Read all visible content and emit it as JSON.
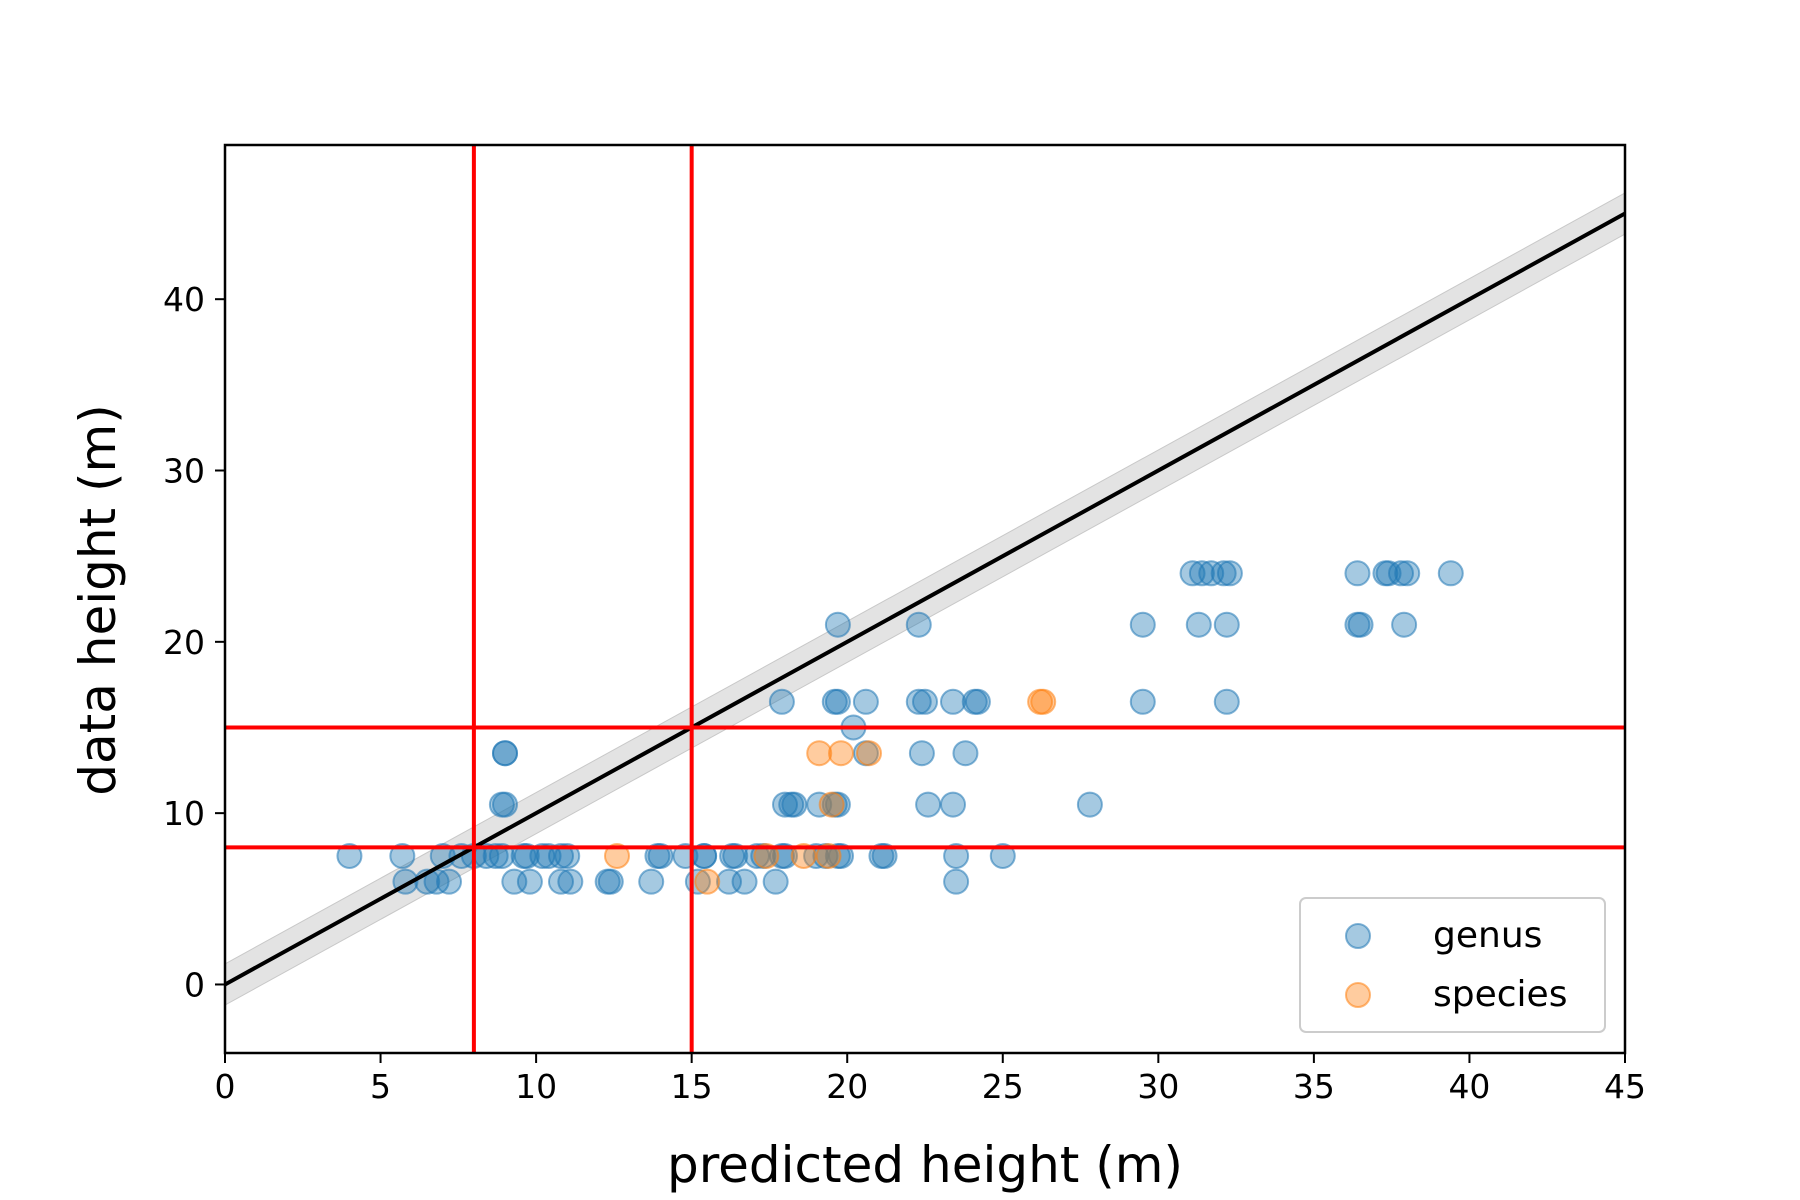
{
  "chart_data": {
    "type": "scatter",
    "title": "",
    "xlabel": "predicted height (m)",
    "ylabel": "data height (m)",
    "xlim": [
      0,
      45
    ],
    "ylim": [
      -4,
      49
    ],
    "xticks": [
      0,
      5,
      10,
      15,
      20,
      25,
      30,
      35,
      40,
      45
    ],
    "yticks": [
      0,
      10,
      20,
      30,
      40
    ],
    "grid": false,
    "legend_position": "lower-right",
    "reference_line": {
      "x": [
        0,
        45
      ],
      "y": [
        0,
        45
      ],
      "color": "#000000",
      "band_halfwidth": 1.2,
      "band_color": "#d9d9d9"
    },
    "threshold_lines": {
      "vertical": [
        8,
        15
      ],
      "horizontal": [
        8,
        15
      ],
      "color": "#ff0000"
    },
    "series": [
      {
        "name": "genus",
        "color": "#1f77b4",
        "points": [
          [
            4.0,
            7.5
          ],
          [
            5.7,
            7.5
          ],
          [
            5.8,
            6.0
          ],
          [
            6.5,
            6.0
          ],
          [
            6.8,
            6.0
          ],
          [
            7.0,
            7.5
          ],
          [
            7.2,
            6.0
          ],
          [
            7.6,
            7.5
          ],
          [
            8.0,
            7.5
          ],
          [
            8.4,
            7.5
          ],
          [
            8.7,
            7.5
          ],
          [
            8.9,
            7.5
          ],
          [
            9.0,
            13.5
          ],
          [
            9.0,
            13.5
          ],
          [
            8.9,
            10.5
          ],
          [
            9.0,
            10.5
          ],
          [
            9.3,
            6.0
          ],
          [
            9.6,
            7.5
          ],
          [
            9.7,
            7.5
          ],
          [
            9.8,
            6.0
          ],
          [
            10.2,
            7.5
          ],
          [
            10.4,
            7.5
          ],
          [
            10.8,
            7.5
          ],
          [
            10.8,
            6.0
          ],
          [
            11.0,
            7.5
          ],
          [
            11.1,
            6.0
          ],
          [
            12.3,
            6.0
          ],
          [
            12.4,
            6.0
          ],
          [
            13.7,
            6.0
          ],
          [
            13.9,
            7.5
          ],
          [
            14.0,
            7.5
          ],
          [
            14.8,
            7.5
          ],
          [
            15.2,
            6.0
          ],
          [
            15.4,
            7.5
          ],
          [
            15.4,
            7.5
          ],
          [
            16.2,
            6.0
          ],
          [
            16.3,
            7.5
          ],
          [
            16.4,
            7.5
          ],
          [
            16.7,
            6.0
          ],
          [
            17.1,
            7.5
          ],
          [
            17.3,
            7.5
          ],
          [
            17.7,
            6.0
          ],
          [
            17.9,
            7.5
          ],
          [
            18.0,
            7.5
          ],
          [
            17.9,
            16.5
          ],
          [
            18.0,
            10.5
          ],
          [
            18.2,
            10.5
          ],
          [
            18.3,
            10.5
          ],
          [
            19.0,
            7.5
          ],
          [
            19.1,
            10.5
          ],
          [
            19.3,
            7.5
          ],
          [
            19.6,
            10.5
          ],
          [
            19.7,
            10.5
          ],
          [
            19.7,
            7.5
          ],
          [
            19.7,
            21.0
          ],
          [
            19.6,
            16.5
          ],
          [
            19.7,
            16.5
          ],
          [
            19.8,
            7.5
          ],
          [
            20.2,
            15.0
          ],
          [
            20.6,
            16.5
          ],
          [
            20.6,
            13.5
          ],
          [
            21.1,
            7.5
          ],
          [
            21.2,
            7.5
          ],
          [
            22.3,
            21.0
          ],
          [
            22.3,
            16.5
          ],
          [
            22.4,
            13.5
          ],
          [
            22.5,
            16.5
          ],
          [
            22.6,
            10.5
          ],
          [
            23.4,
            16.5
          ],
          [
            23.4,
            10.5
          ],
          [
            23.5,
            7.5
          ],
          [
            23.5,
            6.0
          ],
          [
            23.8,
            13.5
          ],
          [
            24.1,
            16.5
          ],
          [
            24.2,
            16.5
          ],
          [
            25.0,
            7.5
          ],
          [
            27.8,
            10.5
          ],
          [
            29.5,
            21.0
          ],
          [
            29.5,
            16.5
          ],
          [
            31.1,
            24.0
          ],
          [
            31.3,
            21.0
          ],
          [
            31.4,
            24.0
          ],
          [
            31.7,
            24.0
          ],
          [
            32.1,
            24.0
          ],
          [
            32.2,
            21.0
          ],
          [
            32.2,
            16.5
          ],
          [
            32.3,
            24.0
          ],
          [
            36.4,
            24.0
          ],
          [
            36.4,
            21.0
          ],
          [
            36.5,
            21.0
          ],
          [
            37.3,
            24.0
          ],
          [
            37.4,
            24.0
          ],
          [
            37.8,
            24.0
          ],
          [
            37.9,
            21.0
          ],
          [
            38.0,
            24.0
          ],
          [
            39.4,
            24.0
          ]
        ]
      },
      {
        "name": "species",
        "color": "#ff7f0e",
        "points": [
          [
            12.6,
            7.5
          ],
          [
            15.5,
            6.0
          ],
          [
            17.4,
            7.5
          ],
          [
            18.6,
            7.5
          ],
          [
            19.1,
            13.5
          ],
          [
            19.4,
            7.5
          ],
          [
            19.5,
            10.5
          ],
          [
            19.8,
            13.5
          ],
          [
            20.7,
            13.5
          ],
          [
            26.2,
            16.5
          ],
          [
            26.3,
            16.5
          ]
        ]
      }
    ]
  }
}
